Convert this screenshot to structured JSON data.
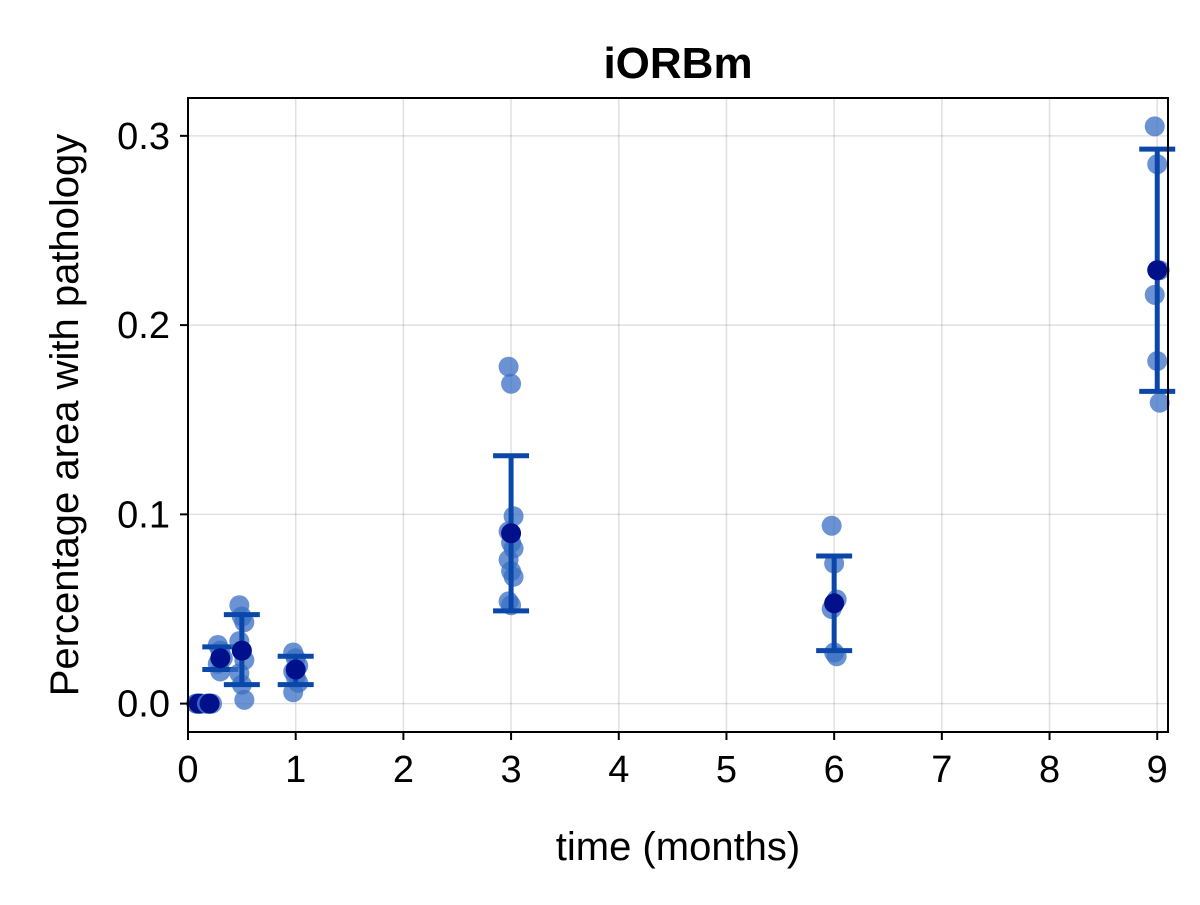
{
  "chart_data": {
    "type": "scatter",
    "title": "iORBm",
    "xlabel": "time (months)",
    "ylabel": "Percentage area with pathology",
    "xlim": [
      0,
      9.1
    ],
    "ylim": [
      -0.015,
      0.32
    ],
    "xticks": [
      0,
      1,
      2,
      3,
      4,
      5,
      6,
      7,
      8,
      9
    ],
    "xtick_labels": [
      "0",
      "1",
      "2",
      "3",
      "4",
      "5",
      "6",
      "7",
      "8",
      "9"
    ],
    "yticks": [
      0.0,
      0.1,
      0.2,
      0.3
    ],
    "ytick_labels": [
      "0.0",
      "0.1",
      "0.2",
      "0.3"
    ],
    "grid": true,
    "colors": {
      "points": "#3a6fc4",
      "mean": "#00108a",
      "errorbar": "#0a47a8"
    },
    "groups": [
      {
        "x": 0.1,
        "points": [
          0,
          0,
          0,
          0,
          0,
          0
        ],
        "mean": 0,
        "err_low": 0,
        "err_high": 0
      },
      {
        "x": 0.2,
        "points": [
          0,
          0,
          0,
          0,
          0
        ],
        "mean": 0,
        "err_low": 0,
        "err_high": 0
      },
      {
        "x": 0.3,
        "points": [
          0.031,
          0.028,
          0.024,
          0.021,
          0.017
        ],
        "mean": 0.024,
        "err_low": 0.018,
        "err_high": 0.03
      },
      {
        "x": 0.5,
        "points": [
          0.052,
          0.046,
          0.043,
          0.033,
          0.028,
          0.023,
          0.016,
          0.01,
          0.002
        ],
        "mean": 0.028,
        "err_low": 0.01,
        "err_high": 0.047
      },
      {
        "x": 1.0,
        "points": [
          0.027,
          0.024,
          0.02,
          0.017,
          0.014,
          0.011,
          0.006
        ],
        "mean": 0.018,
        "err_low": 0.01,
        "err_high": 0.025
      },
      {
        "x": 3.0,
        "points": [
          0.178,
          0.169,
          0.099,
          0.091,
          0.085,
          0.082,
          0.076,
          0.07,
          0.067,
          0.054,
          0.052
        ],
        "mean": 0.09,
        "err_low": 0.049,
        "err_high": 0.131
      },
      {
        "x": 6.0,
        "points": [
          0.094,
          0.074,
          0.055,
          0.05,
          0.027,
          0.025
        ],
        "mean": 0.053,
        "err_low": 0.028,
        "err_high": 0.078
      },
      {
        "x": 9.0,
        "points": [
          0.305,
          0.285,
          0.229,
          0.216,
          0.181,
          0.159
        ],
        "mean": 0.229,
        "err_low": 0.165,
        "err_high": 0.293
      }
    ]
  }
}
